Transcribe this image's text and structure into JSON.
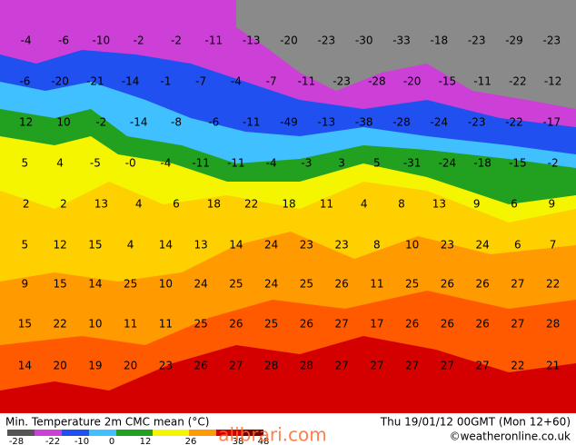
{
  "legend": {
    "title": "Min. Temperature 2m CMC mean (°C)",
    "run": "Thu 19/01/12 00GMT (Mon 12+60)",
    "credit": "©weatheronline.co.uk",
    "scale_ticks": [
      "-28",
      "-22",
      "-10",
      "0",
      "12",
      "26",
      "38",
      "48"
    ]
  },
  "watermark": "alibrari.com",
  "temperature_labels": [
    [
      "-4",
      "-6",
      "-10",
      "-2",
      "-2",
      "-11",
      "-13",
      "-20",
      "-23",
      "-30",
      "-33",
      "-18",
      "-23",
      "-29",
      "-23"
    ],
    [
      "-6",
      "-20",
      "-21",
      "-14",
      "-1",
      "-7",
      "-4",
      "-7",
      "-11",
      "-23",
      "-28",
      "-20",
      "-15",
      "-11",
      "-22",
      "-12"
    ],
    [
      "12",
      "10",
      "-2",
      "-14",
      "-8",
      "-6",
      "-11",
      "-49",
      "-13",
      "-38",
      "-28",
      "-24",
      "-23",
      "-22",
      "-17"
    ],
    [
      "5",
      "4",
      "-5",
      "-0",
      "-4",
      "-11",
      "-11",
      "-4",
      "-3",
      "3",
      "5",
      "-31",
      "-24",
      "-18",
      "-15",
      "-2"
    ],
    [
      "2",
      "2",
      "13",
      "4",
      "6",
      "18",
      "22",
      "18",
      "11",
      "4",
      "8",
      "13",
      "9",
      "6",
      "9"
    ],
    [
      "5",
      "12",
      "15",
      "4",
      "14",
      "13",
      "14",
      "24",
      "23",
      "23",
      "8",
      "10",
      "23",
      "24",
      "6",
      "7"
    ],
    [
      "9",
      "15",
      "14",
      "25",
      "10",
      "24",
      "25",
      "24",
      "25",
      "26",
      "11",
      "25",
      "26",
      "26",
      "27",
      "22"
    ],
    [
      "15",
      "22",
      "10",
      "11",
      "11",
      "25",
      "26",
      "25",
      "26",
      "27",
      "17",
      "26",
      "26",
      "26",
      "27",
      "28"
    ],
    [
      "14",
      "20",
      "19",
      "20",
      "23",
      "26",
      "27",
      "28",
      "28",
      "27",
      "27",
      "27",
      "27",
      "27",
      "22",
      "21"
    ]
  ]
}
